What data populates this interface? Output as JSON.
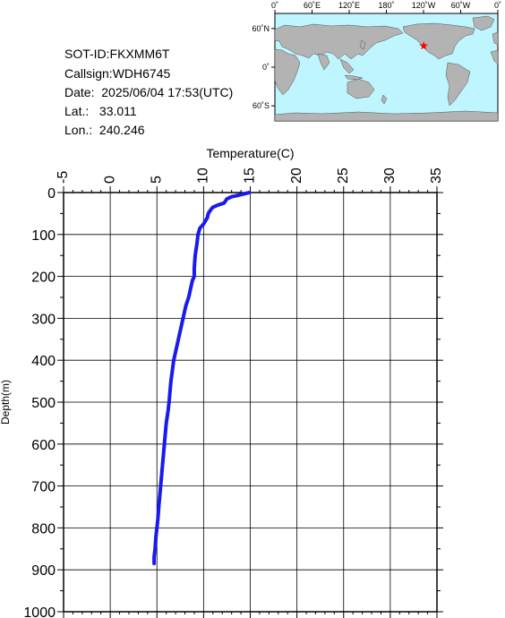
{
  "info": {
    "sot_id": "SOT-ID:FKXMM6T",
    "callsign": "Callsign:WDH6745",
    "date": "Date:  2025/06/04 17:53(UTC)",
    "lat": "Lat.:   33.011",
    "lon": "Lon.:  240.246"
  },
  "map": {
    "top_labels": [
      "0˚",
      "60˚E",
      "120˚E",
      "180˚",
      "120˚W",
      "60˚W",
      "0˚"
    ],
    "left_labels": [
      "60˚N",
      "0˚",
      "60˚S"
    ],
    "marker_lon": 240.246,
    "marker_lat": 33.011,
    "ocean_color": "#bff5ff",
    "land_color": "#b3b3b3",
    "marker_color": "#ff0000"
  },
  "chart_data": {
    "type": "line",
    "xlabel": "Temperature(C)",
    "ylabel": "Depth(m)",
    "xlim": [
      -5,
      35
    ],
    "ylim": [
      1000,
      0
    ],
    "x_ticks": [
      -5,
      0,
      5,
      10,
      15,
      20,
      25,
      30,
      35
    ],
    "y_ticks": [
      0,
      100,
      200,
      300,
      400,
      500,
      600,
      700,
      800,
      900,
      1000
    ],
    "grid": true,
    "line_color": "#1a1aee",
    "series": [
      {
        "x": [
          14.9,
          14.0,
          13.0,
          12.5,
          12.2,
          11.5,
          11.0,
          10.8,
          10.5,
          10.4,
          10.0,
          9.8,
          9.6,
          9.4,
          9.3,
          9.1,
          9.0,
          9.0,
          8.8,
          8.6,
          8.4,
          8.1,
          7.8,
          7.6,
          7.4,
          7.2,
          7.0,
          6.8,
          6.5,
          6.3,
          6.2,
          6.0,
          5.8,
          5.6,
          5.4,
          5.2,
          5.1,
          5.0,
          4.9,
          4.8,
          4.7,
          4.7
        ],
        "y": [
          0,
          5,
          10,
          15,
          25,
          30,
          35,
          40,
          50,
          60,
          75,
          80,
          85,
          100,
          120,
          150,
          180,
          200,
          210,
          230,
          250,
          270,
          300,
          320,
          340,
          360,
          380,
          400,
          450,
          500,
          520,
          550,
          600,
          650,
          700,
          750,
          780,
          800,
          820,
          850,
          870,
          885
        ]
      }
    ]
  }
}
